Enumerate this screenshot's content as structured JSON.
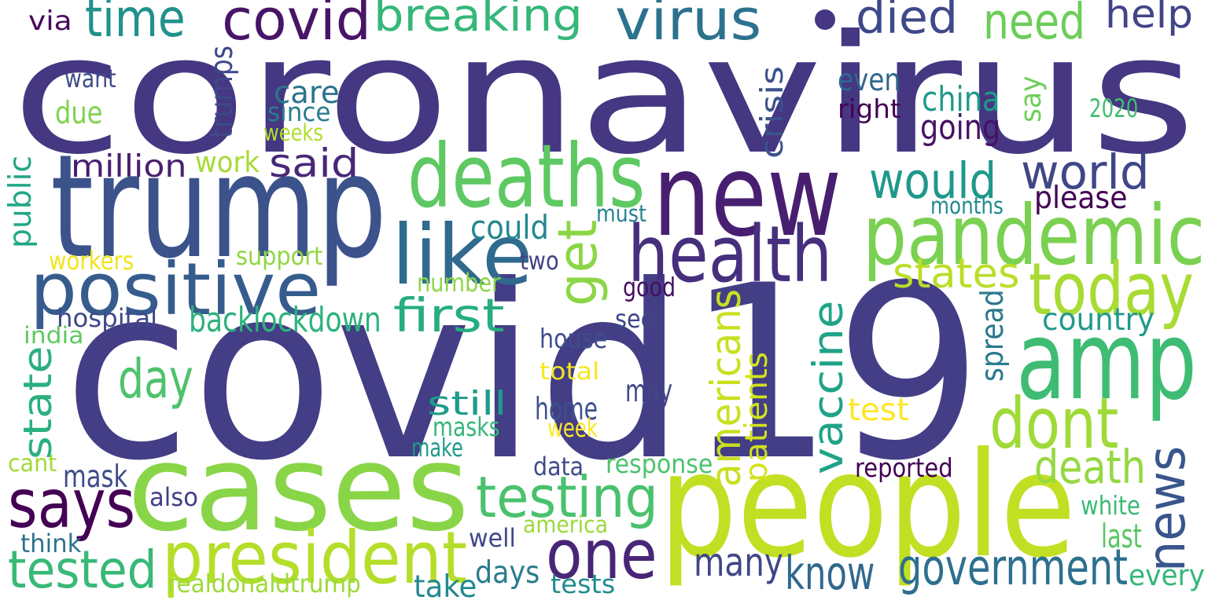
{
  "words": [
    {
      "text": "coronavirus",
      "color": "#453781"
    },
    {
      "text": "covid19",
      "color": "#433e85"
    },
    {
      "text": "people",
      "color": "#c2df23"
    },
    {
      "text": "cases",
      "color": "#89d548"
    },
    {
      "text": "new",
      "color": "#481f70"
    },
    {
      "text": "trump",
      "color": "#3b528b"
    },
    {
      "text": "amp",
      "color": "#3fbc73"
    },
    {
      "text": "pandemic",
      "color": "#7ad151"
    },
    {
      "text": "health",
      "color": "#46307e"
    },
    {
      "text": "positive",
      "color": "#365c8d"
    },
    {
      "text": "deaths",
      "color": "#5ec962"
    },
    {
      "text": "president",
      "color": "#b5de2b"
    },
    {
      "text": "like",
      "color": "#306a8e"
    },
    {
      "text": "today",
      "color": "#a8db34"
    },
    {
      "text": "one",
      "color": "#482576"
    },
    {
      "text": "dont",
      "color": "#a0da39"
    },
    {
      "text": "says",
      "color": "#440154"
    },
    {
      "text": "testing",
      "color": "#4ac16d"
    },
    {
      "text": "covid",
      "color": "#481467"
    },
    {
      "text": "virus",
      "color": "#2c728e"
    },
    {
      "text": "news",
      "color": "#39558c"
    },
    {
      "text": "time",
      "color": "#21918c"
    },
    {
      "text": "breaking",
      "color": "#35b779"
    },
    {
      "text": "vaccine",
      "color": "#20a386"
    },
    {
      "text": "tested",
      "color": "#38b977"
    },
    {
      "text": "government",
      "color": "#2d708e"
    },
    {
      "text": "get",
      "color": "#8bd646"
    },
    {
      "text": "americans",
      "color": "#c8e020"
    },
    {
      "text": "died",
      "color": "#3e4989"
    },
    {
      "text": "world",
      "color": "#3f4788"
    },
    {
      "text": "first",
      "color": "#26ad81"
    },
    {
      "text": "day",
      "color": "#4ec36b"
    },
    {
      "text": "death",
      "color": "#95d840"
    },
    {
      "text": "need",
      "color": "#6ccd5a"
    },
    {
      "text": "would",
      "color": "#1f988b"
    },
    {
      "text": "know",
      "color": "#31688e"
    },
    {
      "text": "many",
      "color": "#404688"
    },
    {
      "text": "state",
      "color": "#2ab07f"
    },
    {
      "text": "states",
      "color": "#bade28"
    },
    {
      "text": "help",
      "color": "#414487"
    },
    {
      "text": "said",
      "color": "#482878"
    },
    {
      "text": "backlockdown",
      "color": "#2db27d"
    },
    {
      "text": "patients",
      "color": "#d2e21b"
    },
    {
      "text": "crisis",
      "color": "#3b528b"
    },
    {
      "text": "trumps",
      "color": "#3e4989"
    },
    {
      "text": "china",
      "color": "#1f9a8a"
    },
    {
      "text": "going",
      "color": "#471164"
    },
    {
      "text": "could",
      "color": "#23888e"
    },
    {
      "text": "still",
      "color": "#1e9b8a"
    },
    {
      "text": "home",
      "color": "#3b528b"
    },
    {
      "text": "may",
      "color": "#404688"
    },
    {
      "text": "country",
      "color": "#1f9a8a"
    },
    {
      "text": "last",
      "color": "#58c765"
    },
    {
      "text": "spread",
      "color": "#2a788e"
    },
    {
      "text": "mask",
      "color": "#3d4d8a"
    },
    {
      "text": "million",
      "color": "#481f70"
    },
    {
      "text": "public",
      "color": "#22a785"
    },
    {
      "text": "take",
      "color": "#23898e"
    },
    {
      "text": "days",
      "color": "#297b8e"
    },
    {
      "text": "test",
      "color": "#fde725"
    },
    {
      "text": "please",
      "color": "#440154"
    },
    {
      "text": "even",
      "color": "#31688e"
    },
    {
      "text": "say",
      "color": "#6ece58"
    },
    {
      "text": "care",
      "color": "#2c738e"
    },
    {
      "text": "work",
      "color": "#a5db36"
    },
    {
      "text": "due",
      "color": "#7fd34e"
    },
    {
      "text": "since",
      "color": "#287d8e"
    },
    {
      "text": "right",
      "color": "#440154"
    },
    {
      "text": "house",
      "color": "#3d4e8a"
    },
    {
      "text": "response",
      "color": "#4cc26c"
    },
    {
      "text": "masks",
      "color": "#32b67a"
    },
    {
      "text": "week",
      "color": "#fde725"
    },
    {
      "text": "every",
      "color": "#35b779"
    },
    {
      "text": "white",
      "color": "#3bbb75"
    },
    {
      "text": "want",
      "color": "#3e4c8a"
    },
    {
      "text": "via",
      "color": "#46085c"
    },
    {
      "text": "hospital",
      "color": "#3f4889"
    },
    {
      "text": "tests",
      "color": "#228c8d"
    },
    {
      "text": "see",
      "color": "#404588"
    },
    {
      "text": "two",
      "color": "#424186"
    },
    {
      "text": "reported",
      "color": "#440154"
    },
    {
      "text": "number",
      "color": "#8bd646"
    },
    {
      "text": "good",
      "color": "#470e61"
    },
    {
      "text": "must",
      "color": "#25848e"
    },
    {
      "text": "workers",
      "color": "#f1e51d"
    },
    {
      "text": "support",
      "color": "#90d743"
    },
    {
      "text": "realdonaldtrump",
      "color": "#9dd93b"
    },
    {
      "text": "months",
      "color": "#23898e"
    },
    {
      "text": "2020",
      "color": "#40bd72"
    },
    {
      "text": "india",
      "color": "#5ec962"
    },
    {
      "text": "total",
      "color": "#f6e620"
    },
    {
      "text": "make",
      "color": "#1e9b8a"
    },
    {
      "text": "data",
      "color": "#3e4c8a"
    },
    {
      "text": "america",
      "color": "#9dd93b"
    },
    {
      "text": "well",
      "color": "#404688"
    },
    {
      "text": "also",
      "color": "#424086"
    },
    {
      "text": "think",
      "color": "#2c728e"
    },
    {
      "text": "cant",
      "color": "#a2da37"
    },
    {
      "text": "weeks",
      "color": "#b0dd2f"
    }
  ]
}
